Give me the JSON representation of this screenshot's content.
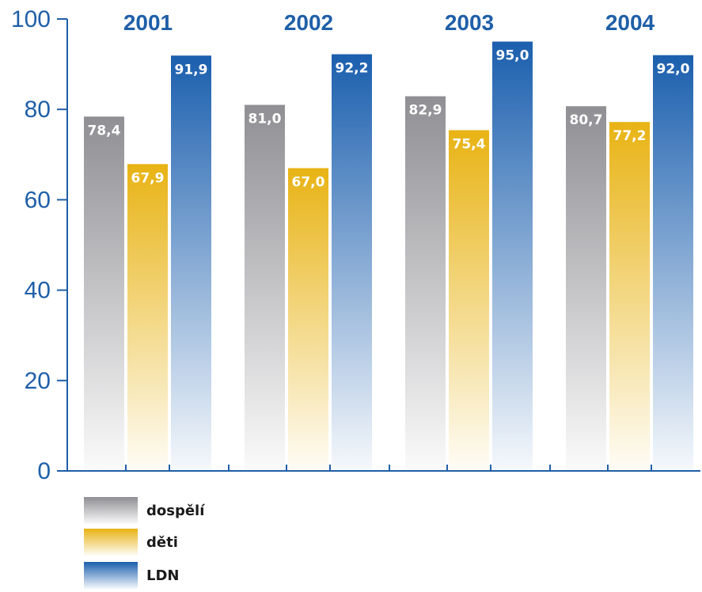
{
  "chart_data": {
    "type": "bar",
    "categories": [
      "2001",
      "2002",
      "2003",
      "2004"
    ],
    "series": [
      {
        "name": "dospělí",
        "values": [
          78.4,
          81.0,
          82.9,
          80.7
        ],
        "labels": [
          "78,4",
          "81,0",
          "82,9",
          "80,7"
        ],
        "color": "#8f8f94"
      },
      {
        "name": "děti",
        "values": [
          67.9,
          67.0,
          75.4,
          77.2
        ],
        "labels": [
          "67,9",
          "67,0",
          "75,4",
          "77,2"
        ],
        "color": "#e8b314"
      },
      {
        "name": "LDN",
        "values": [
          91.9,
          92.2,
          95.0,
          92.0
        ],
        "labels": [
          "91,9",
          "92,2",
          "95,0",
          "92,0"
        ],
        "color": "#1b5fae"
      }
    ],
    "y_ticks": [
      "0",
      "20",
      "40",
      "60",
      "80",
      "100"
    ],
    "ylim": [
      0,
      100
    ],
    "axis_color": "#1f5fa8",
    "grid": false,
    "legend_position": "bottom-left"
  }
}
